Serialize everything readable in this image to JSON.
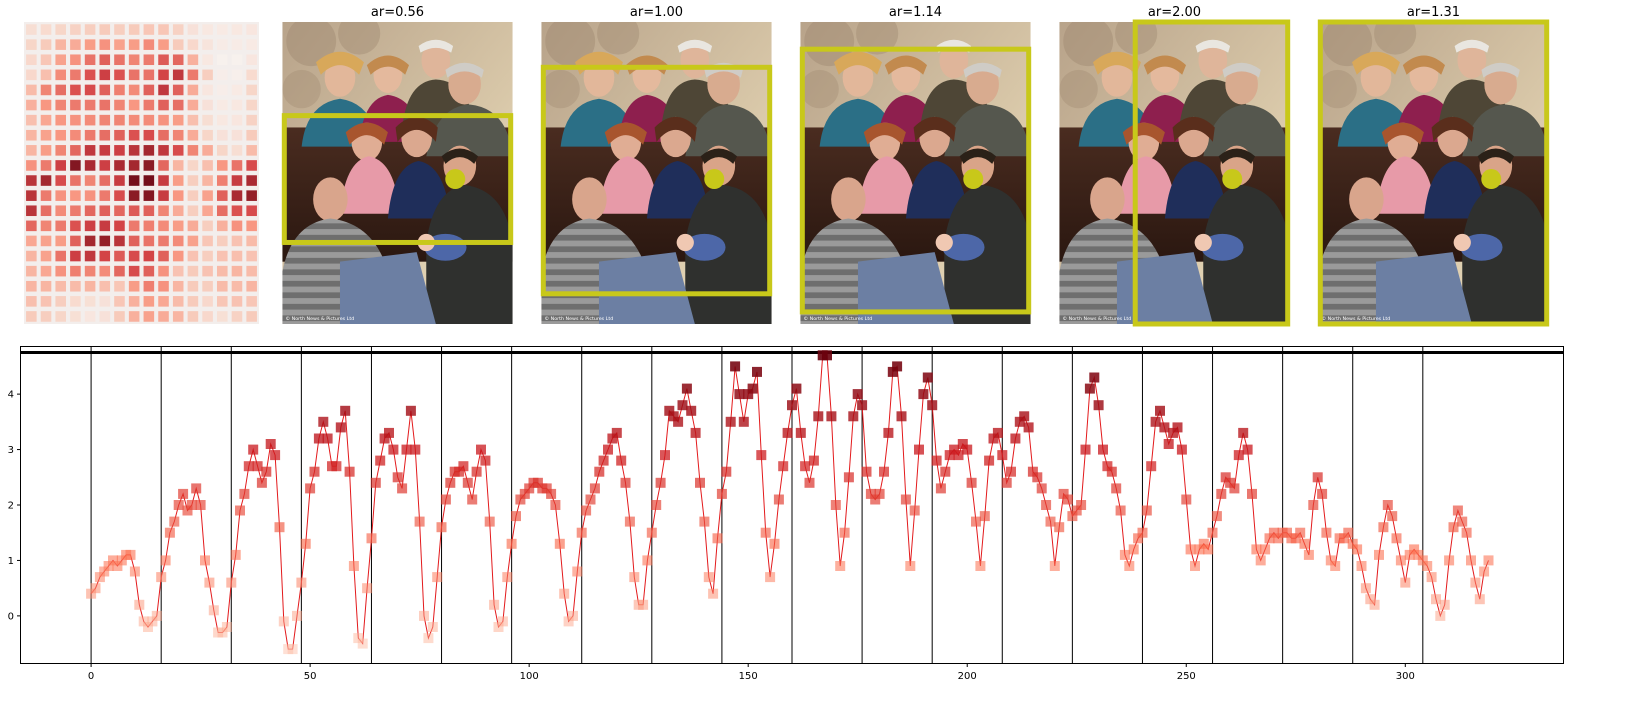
{
  "panels": [
    {
      "title": "ar=0.56"
    },
    {
      "title": "ar=1.00"
    },
    {
      "title": "ar=1.14"
    },
    {
      "title": "ar=2.00"
    },
    {
      "title": "ar=1.31"
    }
  ],
  "photo_credit": "© North News & Pictures Ltd",
  "colors": {
    "box": "#c8c81a",
    "series_line": "#e31a1c",
    "marker_low": "#fcbba1",
    "marker_high": "#67000d",
    "threshold": "#000000"
  },
  "chart_data": [
    {
      "type": "heatmap",
      "rows": 20,
      "cols": 16,
      "colormap": "Reds",
      "note_values_are_row_major_of_line_series": true
    },
    {
      "type": "scatter",
      "title": "",
      "xlabel": "",
      "ylabel": "",
      "xlim": [
        -16,
        336
      ],
      "ylim": [
        -0.85,
        4.85
      ],
      "xticks": [
        0,
        50,
        100,
        150,
        200,
        250,
        300
      ],
      "yticks": [
        0,
        1,
        2,
        3,
        4
      ],
      "threshold_y": 4.75,
      "segment_boundaries": [
        0,
        16,
        32,
        48,
        64,
        80,
        96,
        112,
        128,
        144,
        160,
        176,
        192,
        208,
        224,
        240,
        256,
        272,
        288,
        304
      ],
      "grid": false,
      "x_start": 0,
      "y": [
        0.4,
        0.5,
        0.7,
        0.8,
        0.9,
        1.0,
        0.9,
        1.0,
        1.1,
        1.1,
        0.8,
        0.2,
        -0.1,
        -0.2,
        -0.1,
        0.0,
        0.7,
        1.0,
        1.5,
        1.7,
        2.0,
        2.2,
        1.9,
        2.0,
        2.3,
        2.0,
        1.0,
        0.6,
        0.1,
        -0.3,
        -0.3,
        -0.2,
        0.6,
        1.1,
        1.9,
        2.2,
        2.7,
        3.0,
        2.7,
        2.4,
        2.6,
        3.1,
        2.9,
        1.6,
        -0.1,
        -0.6,
        -0.6,
        0.0,
        0.6,
        1.3,
        2.3,
        2.6,
        3.2,
        3.5,
        3.2,
        2.7,
        2.7,
        3.4,
        3.7,
        2.6,
        0.9,
        -0.4,
        -0.5,
        0.5,
        1.4,
        2.4,
        2.8,
        3.2,
        3.3,
        3.0,
        2.5,
        2.3,
        3.0,
        3.7,
        3.0,
        1.7,
        0.0,
        -0.4,
        -0.2,
        0.7,
        1.6,
        2.1,
        2.4,
        2.6,
        2.6,
        2.7,
        2.4,
        2.1,
        2.6,
        3.0,
        2.8,
        1.7,
        0.2,
        -0.2,
        -0.1,
        0.7,
        1.3,
        1.8,
        2.1,
        2.2,
        2.3,
        2.4,
        2.4,
        2.3,
        2.3,
        2.2,
        2.0,
        1.3,
        0.4,
        -0.1,
        0.0,
        0.8,
        1.5,
        1.9,
        2.1,
        2.3,
        2.6,
        2.8,
        3.0,
        3.2,
        3.3,
        2.8,
        2.4,
        1.7,
        0.7,
        0.2,
        0.2,
        1.0,
        1.5,
        2.0,
        2.4,
        2.9,
        3.7,
        3.6,
        3.5,
        3.8,
        4.1,
        3.7,
        3.3,
        2.4,
        1.7,
        0.7,
        0.4,
        1.4,
        2.2,
        2.6,
        3.5,
        4.5,
        4.0,
        3.5,
        4.0,
        4.1,
        4.4,
        2.9,
        1.5,
        0.7,
        1.3,
        2.1,
        2.7,
        3.3,
        3.8,
        4.1,
        3.3,
        2.7,
        2.4,
        2.8,
        3.6,
        4.7,
        4.7,
        3.6,
        2.0,
        0.9,
        1.5,
        2.5,
        3.6,
        4.0,
        3.8,
        2.6,
        2.2,
        2.1,
        2.2,
        2.6,
        3.3,
        4.4,
        4.5,
        3.6,
        2.1,
        0.9,
        1.9,
        3.0,
        4.0,
        4.3,
        3.8,
        2.8,
        2.3,
        2.6,
        2.9,
        3.0,
        2.9,
        3.1,
        3.0,
        2.4,
        1.7,
        0.9,
        1.8,
        2.8,
        3.2,
        3.3,
        2.9,
        2.4,
        2.6,
        3.2,
        3.5,
        3.6,
        3.4,
        2.6,
        2.5,
        2.3,
        2.0,
        1.7,
        0.9,
        1.6,
        2.2,
        2.1,
        1.8,
        1.9,
        2.0,
        3.0,
        4.1,
        4.3,
        3.8,
        3.0,
        2.7,
        2.6,
        2.3,
        1.9,
        1.1,
        0.9,
        1.2,
        1.4,
        1.5,
        1.9,
        2.7,
        3.5,
        3.7,
        3.4,
        3.1,
        3.3,
        3.4,
        3.0,
        2.1,
        1.2,
        0.9,
        1.2,
        1.3,
        1.2,
        1.5,
        1.8,
        2.2,
        2.5,
        2.4,
        2.3,
        2.9,
        3.3,
        3.0,
        2.2,
        1.2,
        1.0,
        1.2,
        1.4,
        1.5,
        1.4,
        1.5,
        1.5,
        1.4,
        1.4,
        1.5,
        1.3,
        1.1,
        2.0,
        2.5,
        2.2,
        1.5,
        1.0,
        0.9,
        1.4,
        1.4,
        1.5,
        1.3,
        1.2,
        0.9,
        0.5,
        0.3,
        0.2,
        1.1,
        1.6,
        2.0,
        1.8,
        1.4,
        1.0,
        0.6,
        1.1,
        1.2,
        1.1,
        1.0,
        0.9,
        0.7,
        0.3,
        0.0,
        0.2,
        1.0,
        1.6,
        1.9,
        1.7,
        1.5,
        1.0,
        0.6,
        0.3,
        0.8,
        1.0
      ]
    }
  ]
}
